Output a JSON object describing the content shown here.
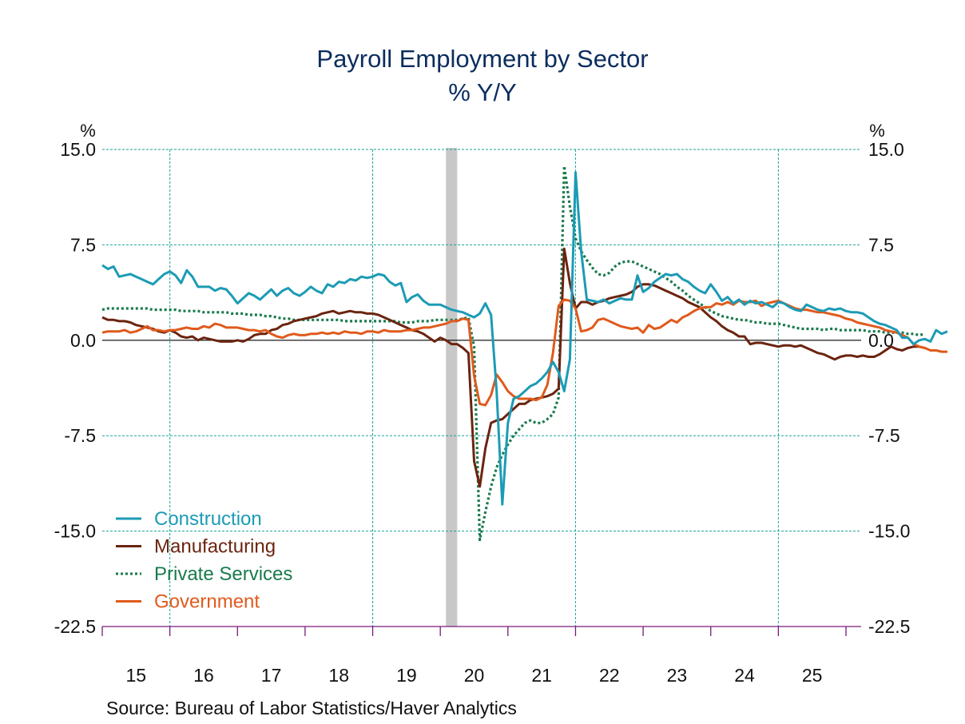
{
  "chart_data": {
    "type": "line",
    "title": "Payroll Employment by Sector",
    "subtitle": "% Y/Y",
    "ylabel_left": "%",
    "ylabel_right": "%",
    "xlabel": "",
    "ylim": [
      -22.5,
      15.0
    ],
    "yticks": [
      15.0,
      7.5,
      0.0,
      -7.5,
      -15.0,
      -22.5
    ],
    "ytick_labels": [
      "15.0",
      "7.5",
      "0.0",
      "-7.5",
      "-15.0",
      "-22.5"
    ],
    "xlim": [
      "2015-01",
      "2025-12"
    ],
    "x_tick_labels": [
      "15",
      "16",
      "17",
      "18",
      "19",
      "20",
      "21",
      "22",
      "23",
      "24",
      "25"
    ],
    "grid": true,
    "recession_shading": {
      "start": "2020-02",
      "end": "2020-04",
      "color": "#c8c8c8"
    },
    "legend_position": "bottom-left",
    "x_start": "2015-01",
    "x_frequency": "monthly",
    "series": [
      {
        "name": "Construction",
        "color": "#1c9bb5",
        "style": "solid",
        "values": [
          5.9,
          5.6,
          5.8,
          5.0,
          5.1,
          5.2,
          5.0,
          4.8,
          4.6,
          4.4,
          4.8,
          5.2,
          5.4,
          5.1,
          4.5,
          5.5,
          5.0,
          4.2,
          4.2,
          4.2,
          3.9,
          4.1,
          4.0,
          3.5,
          2.9,
          3.3,
          3.7,
          3.5,
          3.2,
          3.6,
          4.0,
          3.5,
          3.9,
          4.1,
          3.7,
          3.5,
          3.8,
          4.2,
          3.9,
          3.7,
          4.4,
          4.2,
          4.6,
          4.5,
          4.8,
          4.7,
          5.0,
          4.9,
          5.0,
          5.2,
          5.1,
          4.6,
          4.3,
          4.5,
          3.0,
          3.4,
          3.6,
          3.1,
          2.8,
          2.8,
          2.8,
          2.6,
          2.4,
          2.3,
          2.2,
          2.0,
          1.8,
          2.1,
          2.9,
          2.0,
          -4.0,
          -12.9,
          -6.5,
          -4.6,
          -4.4,
          -4.0,
          -3.6,
          -3.4,
          -3.0,
          -2.5,
          -1.7,
          -2.5,
          -4.0,
          -1.5,
          13.2,
          7.0,
          3.2,
          3.1,
          3.0,
          3.2,
          2.9,
          3.1,
          3.3,
          3.2,
          3.2,
          5.1,
          3.8,
          4.1,
          4.6,
          4.9,
          5.2,
          5.1,
          5.2,
          4.8,
          4.6,
          4.2,
          3.9,
          3.7,
          4.4,
          3.8,
          3.1,
          3.4,
          2.9,
          3.2,
          2.8,
          3.1,
          2.9,
          3.0,
          2.8,
          2.6,
          3.0,
          2.9,
          2.6,
          2.4,
          2.3,
          2.8,
          2.6,
          2.4,
          2.3,
          2.5,
          2.4,
          2.5,
          2.3,
          2.2,
          2.2,
          2.1,
          1.8,
          1.5,
          1.3,
          1.2,
          1.0,
          0.8,
          0.2,
          0.2,
          -0.3,
          0.0,
          0.1,
          -0.1,
          0.8,
          0.5,
          0.7
        ]
      },
      {
        "name": "Manufacturing",
        "color": "#6b2410",
        "style": "solid",
        "values": [
          1.8,
          1.6,
          1.6,
          1.5,
          1.5,
          1.4,
          1.2,
          1.1,
          1.0,
          0.9,
          0.7,
          0.6,
          0.8,
          0.6,
          0.3,
          0.2,
          0.3,
          0.0,
          0.2,
          0.1,
          0.0,
          -0.1,
          -0.1,
          -0.1,
          0.0,
          -0.1,
          0.1,
          0.4,
          0.5,
          0.5,
          0.8,
          0.9,
          1.2,
          1.3,
          1.5,
          1.6,
          1.7,
          1.8,
          1.9,
          2.1,
          2.2,
          2.3,
          2.1,
          2.2,
          2.3,
          2.2,
          2.2,
          2.1,
          2.1,
          2.0,
          1.8,
          1.6,
          1.4,
          1.2,
          1.0,
          0.8,
          0.7,
          0.5,
          0.2,
          -0.1,
          0.2,
          0.0,
          -0.3,
          -0.3,
          -0.6,
          -1.0,
          -9.5,
          -11.5,
          -8.5,
          -6.5,
          -6.3,
          -6.2,
          -5.8,
          -5.4,
          -5.0,
          -5.0,
          -4.7,
          -4.6,
          -4.5,
          -4.4,
          -4.2,
          -3.8,
          7.2,
          4.5,
          2.5,
          3.0,
          3.0,
          2.8,
          3.0,
          3.1,
          3.3,
          3.4,
          3.5,
          3.6,
          3.8,
          4.2,
          4.4,
          4.4,
          4.3,
          4.1,
          3.9,
          3.7,
          3.5,
          3.3,
          3.0,
          2.8,
          2.6,
          2.2,
          1.8,
          1.5,
          1.1,
          0.8,
          0.6,
          0.3,
          0.3,
          -0.3,
          -0.2,
          -0.2,
          -0.3,
          -0.4,
          -0.5,
          -0.4,
          -0.4,
          -0.5,
          -0.4,
          -0.6,
          -0.8,
          -1.0,
          -1.1,
          -1.3,
          -1.5,
          -1.3,
          -1.2,
          -1.2,
          -1.3,
          -1.2,
          -1.3,
          -1.3,
          -1.1,
          -0.8,
          -0.5,
          -0.7,
          -0.8,
          -0.6,
          -0.5,
          -0.5,
          -0.6
        ]
      },
      {
        "name": "Private Services",
        "color": "#1a7a4c",
        "style": "dotted",
        "values": [
          2.4,
          2.5,
          2.5,
          2.5,
          2.5,
          2.5,
          2.5,
          2.5,
          2.5,
          2.4,
          2.4,
          2.4,
          2.4,
          2.4,
          2.3,
          2.3,
          2.3,
          2.3,
          2.2,
          2.2,
          2.2,
          2.2,
          2.2,
          2.1,
          2.1,
          2.1,
          2.0,
          2.0,
          2.0,
          1.9,
          1.9,
          1.8,
          1.7,
          1.7,
          1.6,
          1.6,
          1.6,
          1.6,
          1.6,
          1.6,
          1.6,
          1.6,
          1.6,
          1.5,
          1.5,
          1.5,
          1.5,
          1.5,
          1.5,
          1.5,
          1.5,
          1.5,
          1.5,
          1.4,
          1.4,
          1.4,
          1.5,
          1.5,
          1.5,
          1.6,
          1.6,
          1.6,
          1.6,
          1.6,
          1.7,
          1.8,
          -0.5,
          -15.7,
          -13.5,
          -11.5,
          -10.0,
          -9.0,
          -8.2,
          -7.5,
          -7.0,
          -6.5,
          -6.3,
          -6.5,
          -6.5,
          -6.2,
          -5.8,
          -4.5,
          13.7,
          10.5,
          8.0,
          7.0,
          6.3,
          5.7,
          5.2,
          5.1,
          5.3,
          5.8,
          6.1,
          6.2,
          6.2,
          6.0,
          5.8,
          5.6,
          5.4,
          5.2,
          4.9,
          4.6,
          4.2,
          3.9,
          3.5,
          3.2,
          2.9,
          2.6,
          2.3,
          2.1,
          1.9,
          1.8,
          1.7,
          1.6,
          1.6,
          1.5,
          1.4,
          1.4,
          1.3,
          1.3,
          1.3,
          1.2,
          1.1,
          1.0,
          0.9,
          0.9,
          0.9,
          0.9,
          0.8,
          0.9,
          0.9,
          0.8,
          0.8,
          0.8,
          0.8,
          0.8,
          0.7,
          0.7,
          0.7,
          0.6,
          0.6,
          0.6,
          0.6,
          0.5,
          0.5,
          0.4,
          0.5
        ]
      },
      {
        "name": "Government",
        "color": "#e05a1c",
        "style": "solid",
        "values": [
          0.6,
          0.7,
          0.7,
          0.7,
          0.8,
          0.6,
          0.7,
          0.9,
          1.1,
          0.8,
          0.8,
          0.7,
          0.8,
          0.8,
          0.9,
          1.0,
          0.9,
          0.9,
          1.1,
          1.0,
          1.3,
          1.2,
          1.0,
          1.0,
          1.0,
          0.9,
          0.8,
          0.8,
          0.7,
          0.8,
          0.5,
          0.3,
          0.2,
          0.4,
          0.5,
          0.4,
          0.4,
          0.5,
          0.5,
          0.6,
          0.5,
          0.6,
          0.5,
          0.7,
          0.6,
          0.6,
          0.5,
          0.7,
          0.7,
          0.6,
          0.8,
          0.7,
          0.7,
          0.7,
          0.8,
          0.8,
          0.9,
          1.0,
          1.0,
          1.1,
          1.2,
          1.3,
          1.5,
          1.5,
          1.7,
          1.6,
          -2.8,
          -5.0,
          -5.1,
          -4.3,
          -2.7,
          -3.3,
          -4.0,
          -4.4,
          -4.6,
          -4.6,
          -4.6,
          -4.7,
          -4.5,
          -3.5,
          -1.0,
          2.7,
          3.2,
          3.1,
          2.5,
          0.7,
          0.8,
          1.0,
          1.6,
          1.7,
          1.5,
          1.3,
          1.1,
          1.0,
          0.9,
          1.0,
          0.6,
          1.2,
          0.9,
          1.0,
          1.3,
          1.6,
          1.4,
          1.8,
          2.0,
          2.3,
          2.5,
          2.6,
          2.6,
          2.9,
          2.8,
          3.0,
          2.8,
          3.1,
          3.0,
          3.0,
          3.1,
          2.7,
          2.9,
          3.0,
          3.1,
          2.9,
          2.7,
          2.5,
          2.4,
          2.4,
          2.3,
          2.2,
          2.2,
          2.1,
          2.0,
          1.9,
          1.7,
          1.6,
          1.4,
          1.3,
          1.2,
          1.1,
          1.0,
          0.8,
          0.7,
          0.6,
          0.4,
          0.2,
          -0.3,
          -0.5,
          -0.6,
          -0.8,
          -0.8,
          -0.9,
          -0.9
        ]
      }
    ]
  },
  "source": "Source:  Bureau of Labor Statistics/Haver Analytics"
}
